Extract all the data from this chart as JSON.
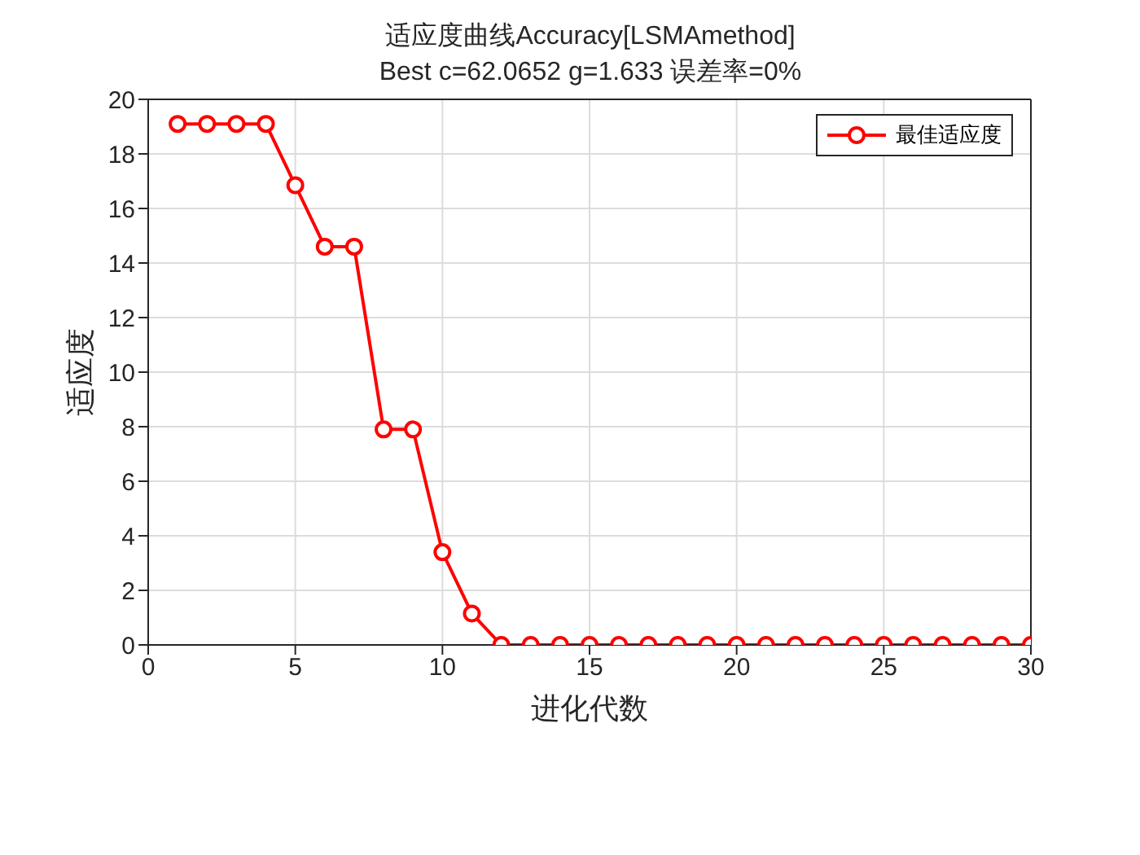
{
  "chart_data": {
    "type": "line",
    "title": "适应度曲线Accuracy[LSMAmethod]",
    "subtitle": "Best c=62.0652 g=1.633 误差率=0%",
    "xlabel": "进化代数",
    "ylabel": "适应度",
    "x": [
      1,
      2,
      3,
      4,
      5,
      6,
      7,
      8,
      9,
      10,
      11,
      12,
      13,
      14,
      15,
      16,
      17,
      18,
      19,
      20,
      21,
      22,
      23,
      24,
      25,
      26,
      27,
      28,
      29,
      30
    ],
    "series": [
      {
        "name": "最佳适应度",
        "color": "#ff0000",
        "values": [
          19.1,
          19.1,
          19.1,
          19.1,
          16.85,
          14.6,
          14.6,
          7.9,
          7.9,
          3.4,
          1.15,
          0,
          0,
          0,
          0,
          0,
          0,
          0,
          0,
          0,
          0,
          0,
          0,
          0,
          0,
          0,
          0,
          0,
          0,
          0
        ]
      }
    ],
    "xlim": [
      0,
      30
    ],
    "xticks": [
      0,
      5,
      10,
      15,
      20,
      25,
      30
    ],
    "ylim": [
      0,
      20
    ],
    "yticks": [
      0,
      2,
      4,
      6,
      8,
      10,
      12,
      14,
      16,
      18,
      20
    ],
    "grid": true,
    "legend": "top right",
    "marker": "circle",
    "line_style": "solid"
  }
}
